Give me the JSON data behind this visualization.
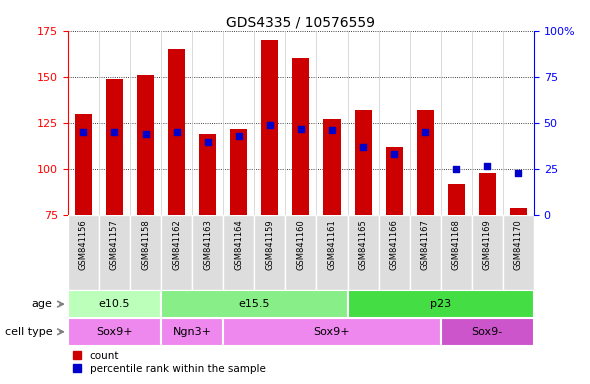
{
  "title": "GDS4335 / 10576559",
  "samples": [
    "GSM841156",
    "GSM841157",
    "GSM841158",
    "GSM841162",
    "GSM841163",
    "GSM841164",
    "GSM841159",
    "GSM841160",
    "GSM841161",
    "GSM841165",
    "GSM841166",
    "GSM841167",
    "GSM841168",
    "GSM841169",
    "GSM841170"
  ],
  "counts": [
    130,
    149,
    151,
    165,
    119,
    122,
    170,
    160,
    127,
    132,
    112,
    132,
    92,
    98,
    79
  ],
  "percentile_ranks": [
    45,
    45,
    44,
    45,
    40,
    43,
    49,
    47,
    46,
    37,
    33,
    45,
    25,
    27,
    23
  ],
  "ylim_left": [
    75,
    175
  ],
  "ylim_right": [
    0,
    100
  ],
  "yticks_left": [
    75,
    100,
    125,
    150,
    175
  ],
  "yticks_right": [
    0,
    25,
    50,
    75,
    100
  ],
  "age_groups": [
    {
      "label": "e10.5",
      "start": 0,
      "end": 3,
      "color": "#bbffbb"
    },
    {
      "label": "e15.5",
      "start": 3,
      "end": 9,
      "color": "#88ee88"
    },
    {
      "label": "p23",
      "start": 9,
      "end": 15,
      "color": "#44dd44"
    }
  ],
  "cell_type_groups": [
    {
      "label": "Sox9+",
      "start": 0,
      "end": 3,
      "color": "#ee88ee"
    },
    {
      "label": "Ngn3+",
      "start": 3,
      "end": 5,
      "color": "#ee88ee"
    },
    {
      "label": "Sox9+",
      "start": 5,
      "end": 12,
      "color": "#ee88ee"
    },
    {
      "label": "Sox9-",
      "start": 12,
      "end": 15,
      "color": "#cc55cc"
    }
  ],
  "bar_color": "#cc0000",
  "dot_color": "#0000cc",
  "bar_width": 0.55,
  "legend_red_label": "count",
  "legend_blue_label": "percentile rank within the sample"
}
